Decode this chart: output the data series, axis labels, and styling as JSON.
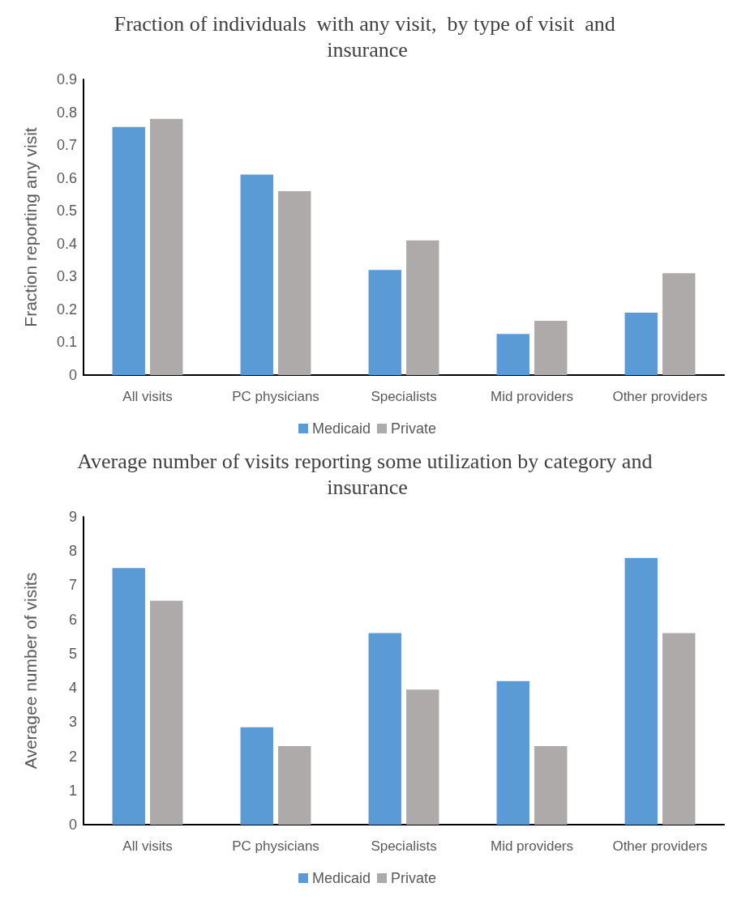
{
  "chart_data": [
    {
      "type": "bar",
      "title": "Fraction of individuals  with any visit,  by type of visit  and insurance",
      "ylabel": "Fraction reporting any visit",
      "categories": [
        "All visits",
        "PC physicians",
        "Specialists",
        "Mid providers",
        "Other providers"
      ],
      "series": [
        {
          "name": "Medicaid",
          "color": "#5b9bd5",
          "values": [
            0.755,
            0.61,
            0.32,
            0.125,
            0.19
          ]
        },
        {
          "name": "Private",
          "color": "#aeaaaa",
          "values": [
            0.78,
            0.56,
            0.41,
            0.165,
            0.31
          ]
        }
      ],
      "ylim": [
        0,
        0.9
      ],
      "yticks": [
        0,
        0.1,
        0.2,
        0.3,
        0.4,
        0.5,
        0.6,
        0.7,
        0.8,
        0.9
      ],
      "grid": false,
      "legend": "bottom"
    },
    {
      "type": "bar",
      "title": "Average number of visits reporting some utilization by category and insurance",
      "ylabel": "Averagee number of visits",
      "categories": [
        "All visits",
        "PC physicians",
        "Specialists",
        "Mid providers",
        "Other providers"
      ],
      "series": [
        {
          "name": "Medicaid",
          "color": "#5b9bd5",
          "values": [
            7.5,
            2.85,
            5.6,
            4.2,
            7.8
          ]
        },
        {
          "name": "Private",
          "color": "#aeaaaa",
          "values": [
            6.55,
            2.3,
            3.95,
            2.3,
            5.6
          ]
        }
      ],
      "ylim": [
        0,
        9
      ],
      "yticks": [
        0,
        1,
        2,
        3,
        4,
        5,
        6,
        7,
        8,
        9
      ],
      "grid": false,
      "legend": "bottom"
    }
  ]
}
